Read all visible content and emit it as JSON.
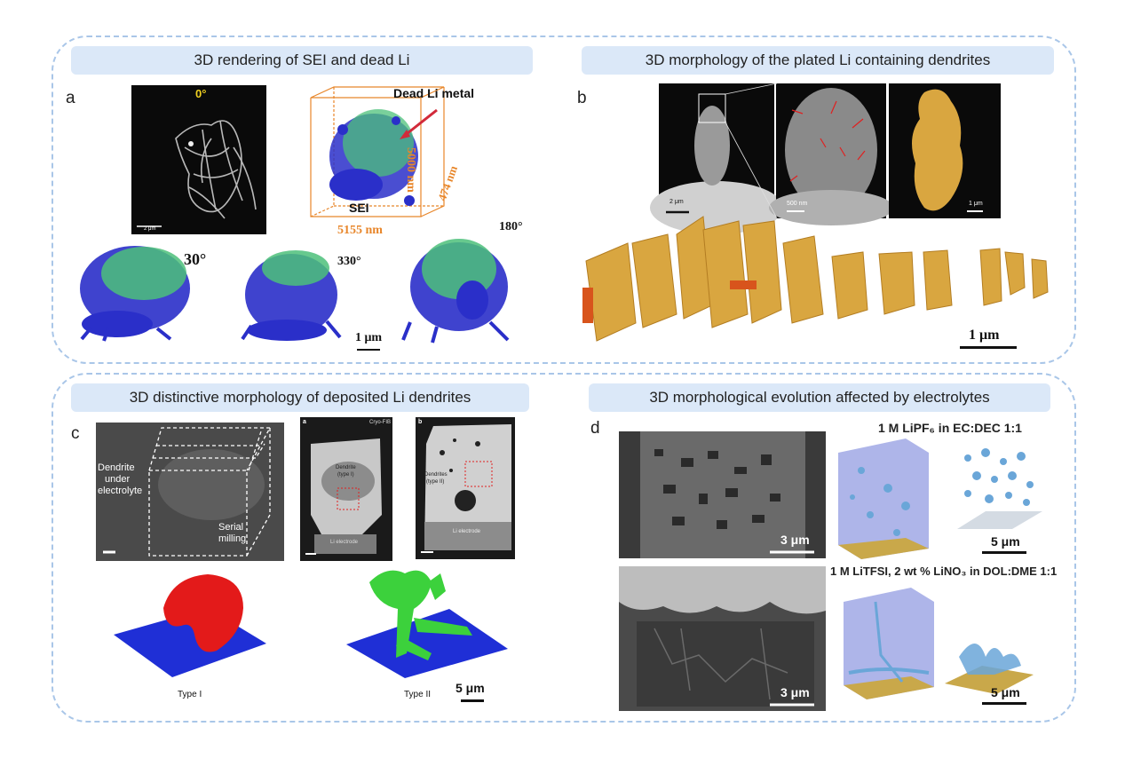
{
  "panels": {
    "a": {
      "label": "a",
      "header": "3D rendering of SEI and dead Li",
      "angle_top": "0°",
      "scale_small": "2 μm",
      "dead_li": "Dead Li metal",
      "sei": "SEI",
      "dim_height": "5000 nm",
      "dim_depth": "474 nm",
      "dim_width": "5155 nm",
      "angle_30": "30°",
      "angle_330": "330°",
      "angle_180": "180°",
      "scale_bar": "1 μm"
    },
    "b": {
      "label": "b",
      "header": "3D morphology of the plated Li containing dendrites",
      "scale_1": "2 μm",
      "scale_2": "500 nm",
      "scale_3": "1 μm",
      "scale_bar": "1 μm"
    },
    "c": {
      "label": "c",
      "header": "3D distinctive morphology of deposited Li dendrites",
      "dendrite_label_1": "Dendrite",
      "dendrite_label_2": "under",
      "dendrite_label_3": "electrolyte",
      "serial_1": "Serial",
      "serial_2": "milling",
      "sub_a": "a",
      "cryo_fib": "Cryo-FIB",
      "dendrite_type1_1": "Dendrite",
      "dendrite_type1_2": "(type I)",
      "li_electrode_1": "Li electrode",
      "sub_b": "b",
      "dendrites_type2_1": "Dendrites",
      "dendrites_type2_2": "(type II)",
      "li_electrode_2": "Li electrode",
      "type1": "Type I",
      "type2": "Type II",
      "scale_bar": "5 μm"
    },
    "d": {
      "label": "d",
      "header": "3D morphological evolution affected by electrolytes",
      "electrolyte_1": "1 M LiPF₆ in EC:DEC 1:1",
      "electrolyte_2": "1 M LiTFSI, 2 wt % LiNO₃ in DOL:DME 1:1",
      "scale_sem_1": "3 μm",
      "scale_3d_1": "5 μm",
      "scale_sem_2": "3 μm",
      "scale_3d_2": "5 μm"
    }
  },
  "colors": {
    "frame": "#a9c6e8",
    "header_bg": "#dbe8f8",
    "dim_orange": "#e8862a",
    "angle_yellow": "#f0d020",
    "sei_blue": "#2a2fc9",
    "sei_green": "#4cc07a",
    "gold": "#d9a640",
    "red_dendrite": "#e31a1a",
    "green_dendrite": "#3cd13c"
  }
}
